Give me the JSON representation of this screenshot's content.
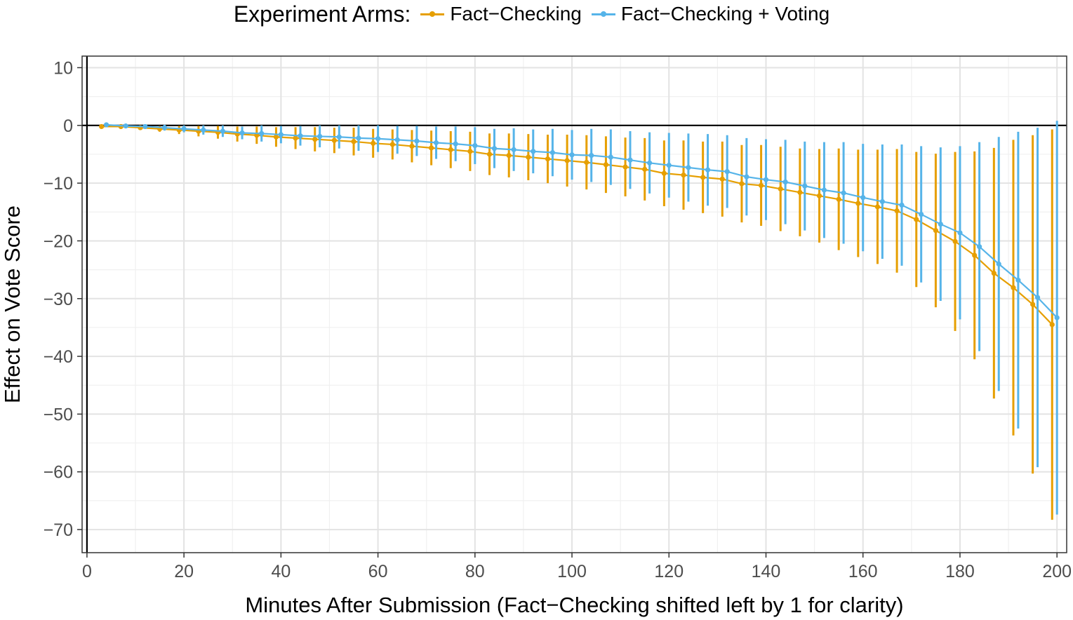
{
  "chart_data": {
    "type": "line",
    "legend_title": "Experiment Arms:",
    "legend_position": "top",
    "xlabel": "Minutes After Submission (Fact−Checking shifted left by 1 for clarity)",
    "ylabel": "Effect on Vote Score",
    "xlim": [
      -1,
      202
    ],
    "ylim": [
      -74,
      12
    ],
    "x_ticks": [
      0,
      20,
      40,
      60,
      80,
      100,
      120,
      140,
      160,
      180,
      200
    ],
    "y_ticks": [
      10,
      0,
      -10,
      -20,
      -30,
      -40,
      -50,
      -60,
      -70
    ],
    "x_tick_labels": [
      "0",
      "20",
      "40",
      "60",
      "80",
      "100",
      "120",
      "140",
      "160",
      "180",
      "200"
    ],
    "y_tick_labels": [
      "10",
      "0",
      "−10",
      "−20",
      "−30",
      "−40",
      "−50",
      "−60",
      "−70"
    ],
    "grid": true,
    "reference_lines": {
      "x": 0,
      "y": 0
    },
    "series": [
      {
        "name": "Fact−Checking",
        "color": "#E69F00",
        "x": [
          3,
          7,
          11,
          15,
          19,
          23,
          27,
          31,
          35,
          39,
          43,
          47,
          51,
          55,
          59,
          63,
          67,
          71,
          75,
          79,
          83,
          87,
          91,
          95,
          99,
          103,
          107,
          111,
          115,
          119,
          123,
          127,
          131,
          135,
          139,
          143,
          147,
          151,
          155,
          159,
          163,
          167,
          171,
          175,
          179,
          183,
          187,
          191,
          195,
          199
        ],
        "y": [
          -0.2,
          -0.2,
          -0.4,
          -0.6,
          -0.8,
          -1.0,
          -1.2,
          -1.5,
          -1.7,
          -2.0,
          -2.2,
          -2.4,
          -2.6,
          -2.8,
          -3.1,
          -3.3,
          -3.6,
          -3.9,
          -4.2,
          -4.5,
          -5.0,
          -5.2,
          -5.5,
          -5.8,
          -6.1,
          -6.4,
          -6.8,
          -7.2,
          -7.6,
          -8.3,
          -8.6,
          -9.0,
          -9.3,
          -10.1,
          -10.4,
          -11.0,
          -11.6,
          -12.2,
          -12.8,
          -13.5,
          -14.1,
          -14.8,
          -16.3,
          -18.2,
          -20.1,
          -22.5,
          -25.6,
          -28.1,
          -31.0,
          -34.5
        ],
        "lower": [
          -0.5,
          -0.6,
          -0.8,
          -1.1,
          -1.5,
          -1.9,
          -2.3,
          -2.8,
          -3.2,
          -3.7,
          -4.1,
          -4.5,
          -4.8,
          -5.2,
          -5.6,
          -5.9,
          -6.4,
          -6.9,
          -7.4,
          -7.9,
          -8.6,
          -9.0,
          -9.5,
          -10.0,
          -10.6,
          -11.1,
          -11.7,
          -12.3,
          -13.0,
          -14.0,
          -14.6,
          -15.2,
          -15.8,
          -16.8,
          -17.4,
          -18.3,
          -19.2,
          -20.3,
          -21.6,
          -22.8,
          -24.0,
          -25.5,
          -28.0,
          -31.5,
          -35.6,
          -40.5,
          -47.3,
          -53.7,
          -60.3,
          -68.3
        ],
        "upper": [
          0.1,
          0.2,
          0.0,
          -0.1,
          -0.1,
          -0.1,
          -0.1,
          -0.2,
          -0.2,
          -0.3,
          -0.3,
          -0.3,
          -0.4,
          -0.4,
          -0.6,
          -0.7,
          -0.8,
          -0.9,
          -1.0,
          -1.1,
          -1.4,
          -1.4,
          -1.5,
          -1.6,
          -1.6,
          -1.7,
          -1.9,
          -2.1,
          -2.2,
          -2.6,
          -2.6,
          -2.8,
          -2.8,
          -3.4,
          -3.4,
          -3.7,
          -4.0,
          -4.1,
          -4.0,
          -4.2,
          -4.2,
          -4.1,
          -4.6,
          -4.9,
          -4.6,
          -4.5,
          -3.9,
          -2.5,
          -1.7,
          -0.7
        ]
      },
      {
        "name": "Fact−Checking + Voting",
        "color": "#56B4E9",
        "x": [
          4,
          8,
          12,
          16,
          20,
          24,
          28,
          32,
          36,
          40,
          44,
          48,
          52,
          56,
          60,
          64,
          68,
          72,
          76,
          80,
          84,
          88,
          92,
          96,
          100,
          104,
          108,
          112,
          116,
          120,
          124,
          128,
          132,
          136,
          140,
          144,
          148,
          152,
          156,
          160,
          164,
          168,
          172,
          176,
          180,
          184,
          188,
          192,
          196,
          200
        ],
        "y": [
          0.1,
          -0.1,
          -0.2,
          -0.4,
          -0.6,
          -0.8,
          -1.0,
          -1.3,
          -1.4,
          -1.6,
          -1.8,
          -1.9,
          -2.0,
          -2.2,
          -2.3,
          -2.5,
          -2.7,
          -3.0,
          -3.2,
          -3.5,
          -4.0,
          -4.2,
          -4.5,
          -4.7,
          -5.1,
          -5.2,
          -5.5,
          -6.0,
          -6.5,
          -6.9,
          -7.3,
          -7.7,
          -8.0,
          -8.9,
          -9.4,
          -9.8,
          -10.5,
          -11.2,
          -11.7,
          -12.5,
          -13.2,
          -13.8,
          -15.4,
          -17.1,
          -18.6,
          -21.0,
          -24.0,
          -26.8,
          -29.8,
          -33.3
        ],
        "lower": [
          -0.2,
          -0.4,
          -0.6,
          -0.9,
          -1.2,
          -1.6,
          -2.0,
          -2.4,
          -2.8,
          -3.1,
          -3.5,
          -3.8,
          -4.0,
          -4.4,
          -4.6,
          -4.9,
          -5.3,
          -5.8,
          -6.2,
          -6.7,
          -7.4,
          -7.9,
          -8.3,
          -8.8,
          -9.4,
          -9.8,
          -10.3,
          -11.0,
          -11.8,
          -12.5,
          -13.2,
          -13.9,
          -14.3,
          -15.6,
          -16.4,
          -17.1,
          -18.2,
          -19.5,
          -20.5,
          -21.8,
          -23.1,
          -24.3,
          -27.2,
          -30.4,
          -33.6,
          -39.1,
          -46.0,
          -52.5,
          -59.2,
          -67.4
        ],
        "upper": [
          0.4,
          0.2,
          0.2,
          0.1,
          0.0,
          0.0,
          0.0,
          -0.2,
          0.0,
          -0.1,
          -0.1,
          0.0,
          0.0,
          0.0,
          0.0,
          -0.1,
          -0.1,
          -0.2,
          -0.2,
          -0.3,
          -0.6,
          -0.5,
          -0.7,
          -0.6,
          -0.8,
          -0.6,
          -0.7,
          -1.0,
          -1.2,
          -1.3,
          -1.4,
          -1.5,
          -1.7,
          -2.2,
          -2.4,
          -2.5,
          -2.8,
          -2.9,
          -2.9,
          -3.2,
          -3.3,
          -3.3,
          -3.6,
          -3.8,
          -3.6,
          -2.9,
          -2.0,
          -1.1,
          -0.4,
          0.8
        ]
      }
    ]
  }
}
